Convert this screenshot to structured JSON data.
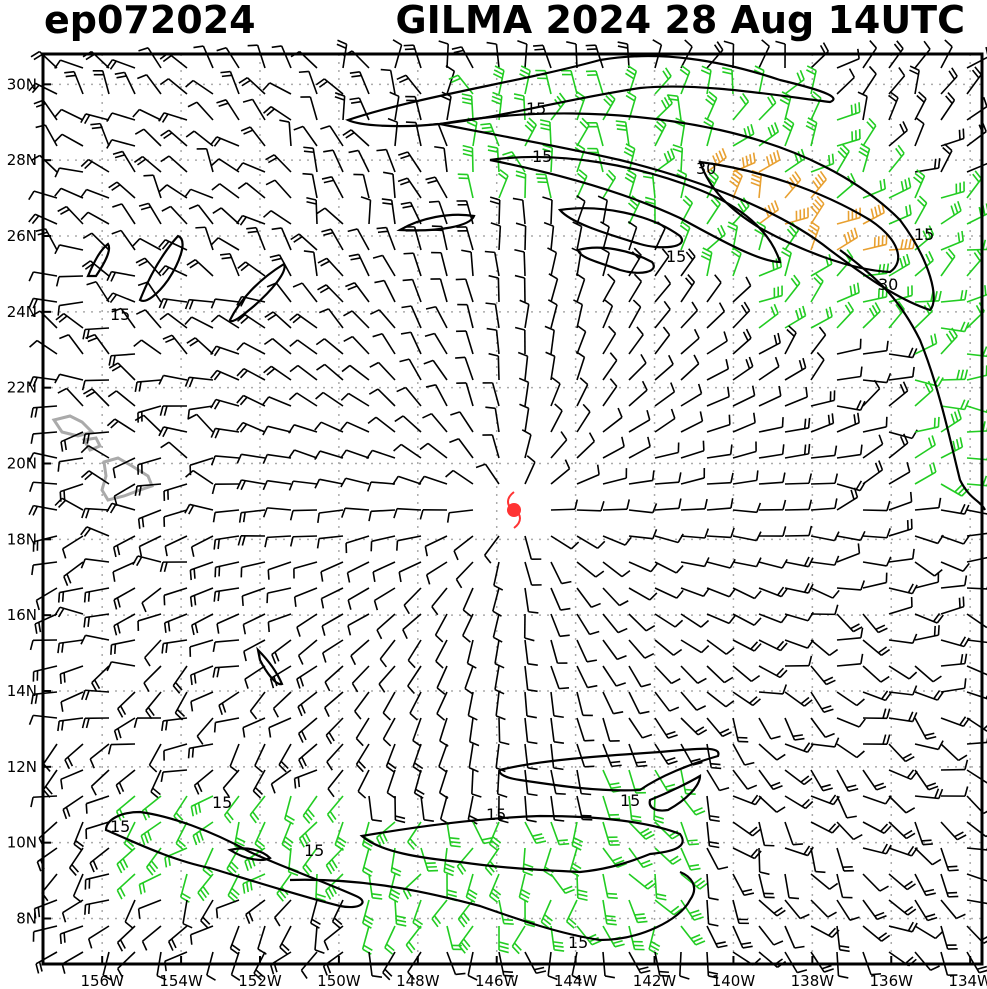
{
  "header": {
    "storm_id": "ep072024",
    "storm_title": "GILMA 2024 28 Aug 14UTC"
  },
  "axes": {
    "lat_labels": [
      "30N",
      "28N",
      "26N",
      "24N",
      "22N",
      "20N",
      "18N",
      "16N",
      "14N",
      "12N",
      "10N",
      "8N"
    ],
    "lat_values": [
      30,
      28,
      26,
      24,
      22,
      20,
      18,
      16,
      14,
      12,
      10,
      8
    ],
    "lon_labels": [
      "156W",
      "154W",
      "152W",
      "150W",
      "148W",
      "146W",
      "144W",
      "142W",
      "140W",
      "138W",
      "136W",
      "134W"
    ],
    "lon_values": [
      -156,
      -154,
      -152,
      -150,
      -148,
      -146,
      -144,
      -142,
      -140,
      -138,
      -136,
      -134
    ],
    "lat_range": [
      6.8,
      30.8
    ],
    "lon_range": [
      -157.5,
      -133.7
    ],
    "grid": true
  },
  "storm_center": {
    "lat": 18.8,
    "lon": -145.5,
    "symbol": "tropical-storm-icon",
    "color": "#ff3333"
  },
  "contours": {
    "labels": [
      "15",
      "15",
      "15",
      "30",
      "15",
      "15",
      "30",
      "15",
      "15",
      "15",
      "15",
      "15",
      "15"
    ]
  },
  "colors": {
    "frame": "#000000",
    "grid": "#aaaaaa",
    "wind_low": "#000000",
    "wind_mid": "#22cc22",
    "wind_high": "#e8a030",
    "land": "#aaaaaa"
  }
}
